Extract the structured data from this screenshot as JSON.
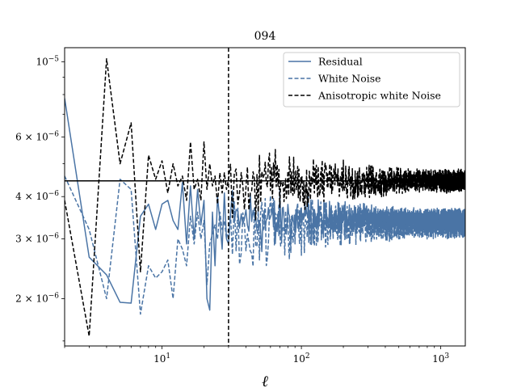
{
  "chart_data": {
    "type": "line",
    "title": "094",
    "xlabel": "ℓ",
    "ylabel": "",
    "xscale": "log",
    "yscale": "log",
    "xlim": [
      2,
      1500
    ],
    "ylim": [
      1.45e-06,
      1.1e-05
    ],
    "x_ticks": [
      {
        "value": 10,
        "label": "10",
        "sup": "1"
      },
      {
        "value": 100,
        "label": "10",
        "sup": "2"
      },
      {
        "value": 1000,
        "label": "10",
        "sup": "3"
      }
    ],
    "y_ticks": [
      {
        "value": 2e-06,
        "label": "2 × 10",
        "sup": "−6"
      },
      {
        "value": 3e-06,
        "label": "3 × 10",
        "sup": "−6"
      },
      {
        "value": 4e-06,
        "label": "4 × 10",
        "sup": "−6"
      },
      {
        "value": 6e-06,
        "label": "6 × 10",
        "sup": "−6"
      },
      {
        "value": 1e-05,
        "label": "10",
        "sup": "−5"
      }
    ],
    "legend_position": "top-right",
    "series": [
      {
        "name": "Residual",
        "color": "#4a74a5",
        "style": "solid",
        "baseline": 3.45e-06,
        "highl_scatter": 0.06,
        "points": [
          [
            2,
            7.8e-06
          ],
          [
            3,
            2.65e-06
          ],
          [
            4,
            2.35e-06
          ],
          [
            5,
            1.95e-06
          ],
          [
            6,
            1.94e-06
          ],
          [
            7,
            3.5e-06
          ],
          [
            8,
            3.8e-06
          ],
          [
            9,
            3.2e-06
          ],
          [
            10,
            3.8e-06
          ],
          [
            11,
            3.9e-06
          ],
          [
            12,
            3.4e-06
          ],
          [
            13,
            3.2e-06
          ],
          [
            14,
            4.4e-06
          ],
          [
            15,
            2.9e-06
          ],
          [
            16,
            4.3e-06
          ],
          [
            17,
            3e-06
          ],
          [
            18,
            4.2e-06
          ],
          [
            19,
            3.3e-06
          ],
          [
            20,
            3.9e-06
          ],
          [
            21,
            2e-06
          ],
          [
            22,
            1.85e-06
          ],
          [
            23,
            3.6e-06
          ],
          [
            24,
            2.5e-06
          ],
          [
            25,
            4e-06
          ],
          [
            26,
            3.4e-06
          ],
          [
            27,
            2.8e-06
          ],
          [
            28,
            4.1e-06
          ],
          [
            29,
            3e-06
          ],
          [
            30,
            2.9e-06
          ]
        ]
      },
      {
        "name": "White Noise",
        "color": "#4a74a5",
        "style": "dashed",
        "baseline": 3.3e-06,
        "highl_scatter": 0.08,
        "points": [
          [
            2,
            4.6e-06
          ],
          [
            3,
            3.2e-06
          ],
          [
            4,
            2e-06
          ],
          [
            5,
            4.5e-06
          ],
          [
            6,
            4.2e-06
          ],
          [
            7,
            1.8e-06
          ],
          [
            8,
            2.5e-06
          ],
          [
            9,
            2.3e-06
          ],
          [
            10,
            2.4e-06
          ],
          [
            11,
            2.6e-06
          ],
          [
            12,
            2e-06
          ],
          [
            13,
            3e-06
          ],
          [
            14,
            2.8e-06
          ],
          [
            15,
            2.5e-06
          ],
          [
            16,
            3.5e-06
          ],
          [
            17,
            2.9e-06
          ],
          [
            18,
            3.6e-06
          ],
          [
            19,
            3e-06
          ],
          [
            20,
            3.4e-06
          ],
          [
            21,
            2.2e-06
          ],
          [
            22,
            2.9e-06
          ],
          [
            23,
            3.1e-06
          ],
          [
            24,
            3.3e-06
          ],
          [
            25,
            3e-06
          ],
          [
            26,
            3.6e-06
          ],
          [
            27,
            3.2e-06
          ],
          [
            28,
            3.4e-06
          ],
          [
            29,
            3e-06
          ],
          [
            30,
            3.2e-06
          ]
        ]
      },
      {
        "name": "Anisotropic white Noise",
        "color": "#000000",
        "style": "dashed",
        "baseline": 4.45e-06,
        "highl_scatter": 0.07,
        "points": [
          [
            2,
            3.9e-06
          ],
          [
            3,
            1.55e-06
          ],
          [
            4,
            1.02e-05
          ],
          [
            5,
            5e-06
          ],
          [
            6,
            6.6e-06
          ],
          [
            7,
            2.4e-06
          ],
          [
            8,
            5.3e-06
          ],
          [
            9,
            4.5e-06
          ],
          [
            10,
            5.1e-06
          ],
          [
            11,
            4.1e-06
          ],
          [
            12,
            5e-06
          ],
          [
            13,
            4.3e-06
          ],
          [
            14,
            4.6e-06
          ],
          [
            15,
            3.9e-06
          ],
          [
            16,
            5.8e-06
          ],
          [
            17,
            4.2e-06
          ],
          [
            18,
            4.5e-06
          ],
          [
            19,
            3.9e-06
          ],
          [
            20,
            5.8e-06
          ],
          [
            21,
            4.2e-06
          ],
          [
            22,
            5e-06
          ],
          [
            23,
            4.3e-06
          ],
          [
            24,
            4.6e-06
          ],
          [
            25,
            3.8e-06
          ],
          [
            26,
            4.7e-06
          ],
          [
            27,
            4.1e-06
          ],
          [
            28,
            4.7e-06
          ],
          [
            29,
            4.2e-06
          ],
          [
            30,
            4.5e-06
          ]
        ]
      }
    ],
    "hline": {
      "y": 4.45e-06,
      "color": "#000000",
      "style": "solid"
    },
    "vline": {
      "x": 30,
      "color": "#000000",
      "style": "dashed"
    }
  }
}
